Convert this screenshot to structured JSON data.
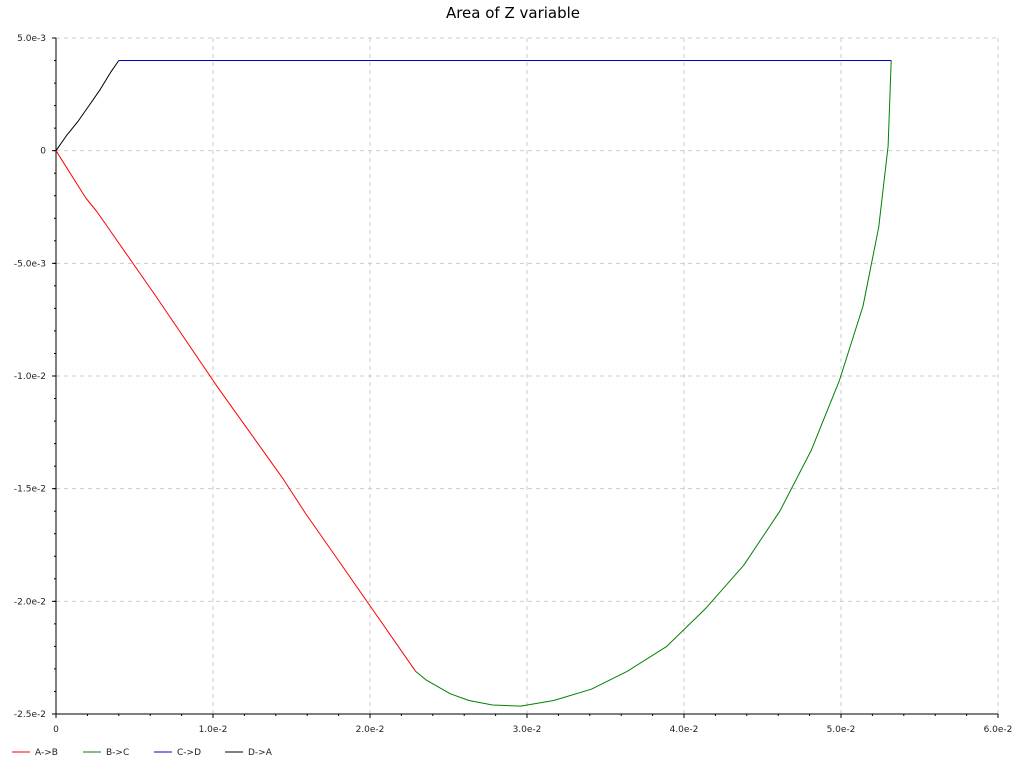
{
  "chart_data": {
    "type": "line",
    "title": "Area of Z variable",
    "xlabel": "",
    "ylabel": "",
    "xlim": [
      0,
      0.06
    ],
    "ylim": [
      -0.025,
      0.005
    ],
    "x_ticks": [
      {
        "value": 0,
        "label": "0"
      },
      {
        "value": 0.01,
        "label": "1.0e-2"
      },
      {
        "value": 0.02,
        "label": "2.0e-2"
      },
      {
        "value": 0.03,
        "label": "3.0e-2"
      },
      {
        "value": 0.04,
        "label": "4.0e-2"
      },
      {
        "value": 0.05,
        "label": "5.0e-2"
      },
      {
        "value": 0.06,
        "label": "6.0e-2"
      }
    ],
    "y_ticks": [
      {
        "value": 0.005,
        "label": "5.0e-3"
      },
      {
        "value": 0,
        "label": "0"
      },
      {
        "value": -0.005,
        "label": "-5.0e-3"
      },
      {
        "value": -0.01,
        "label": "-1.0e-2"
      },
      {
        "value": -0.015,
        "label": "-1.5e-2"
      },
      {
        "value": -0.02,
        "label": "-2.0e-2"
      },
      {
        "value": -0.025,
        "label": "-2.5e-2"
      }
    ],
    "grid": true,
    "legend_position": "bottom-left",
    "series": [
      {
        "name": "A->B",
        "color": "#ff0000",
        "points": [
          [
            0,
            0
          ],
          [
            0.0019,
            -0.0021
          ],
          [
            0.0026,
            -0.0027
          ],
          [
            0.0064,
            -0.0065
          ],
          [
            0.0103,
            -0.0105
          ],
          [
            0.0144,
            -0.0145
          ],
          [
            0.0159,
            -0.0161
          ],
          [
            0.0181,
            -0.0183
          ],
          [
            0.0205,
            -0.0207
          ],
          [
            0.0229,
            -0.0231
          ]
        ]
      },
      {
        "name": "B->C",
        "color": "#008000",
        "points": [
          [
            0.0229,
            -0.0231
          ],
          [
            0.0236,
            -0.0235
          ],
          [
            0.0251,
            -0.0241
          ],
          [
            0.0263,
            -0.0244
          ],
          [
            0.0278,
            -0.0246
          ],
          [
            0.0296,
            -0.02465
          ],
          [
            0.0317,
            -0.0244
          ],
          [
            0.0341,
            -0.0239
          ],
          [
            0.0364,
            -0.0231
          ],
          [
            0.0389,
            -0.022
          ],
          [
            0.0414,
            -0.0203
          ],
          [
            0.0438,
            -0.0184
          ],
          [
            0.0461,
            -0.016
          ],
          [
            0.0481,
            -0.0133
          ],
          [
            0.0499,
            -0.0102
          ],
          [
            0.0514,
            -0.0069
          ],
          [
            0.0524,
            -0.0034
          ],
          [
            0.053,
            0.0002
          ],
          [
            0.0532,
            0.004
          ]
        ]
      },
      {
        "name": "C->D",
        "color": "#0000cc",
        "points": [
          [
            0.0532,
            0.004
          ],
          [
            0.004,
            0.004
          ]
        ]
      },
      {
        "name": "D->A",
        "color": "#000000",
        "points": [
          [
            0.004,
            0.004
          ],
          [
            0.0035,
            0.0035
          ],
          [
            0.0028,
            0.0027
          ],
          [
            0.0021,
            0.002
          ],
          [
            0.0014,
            0.0013
          ],
          [
            0.0007,
            0.0007
          ],
          [
            0,
            0
          ]
        ]
      }
    ]
  },
  "style": {
    "grid_color": "#cccccc",
    "axis_color": "#000000",
    "background": "#ffffff"
  }
}
